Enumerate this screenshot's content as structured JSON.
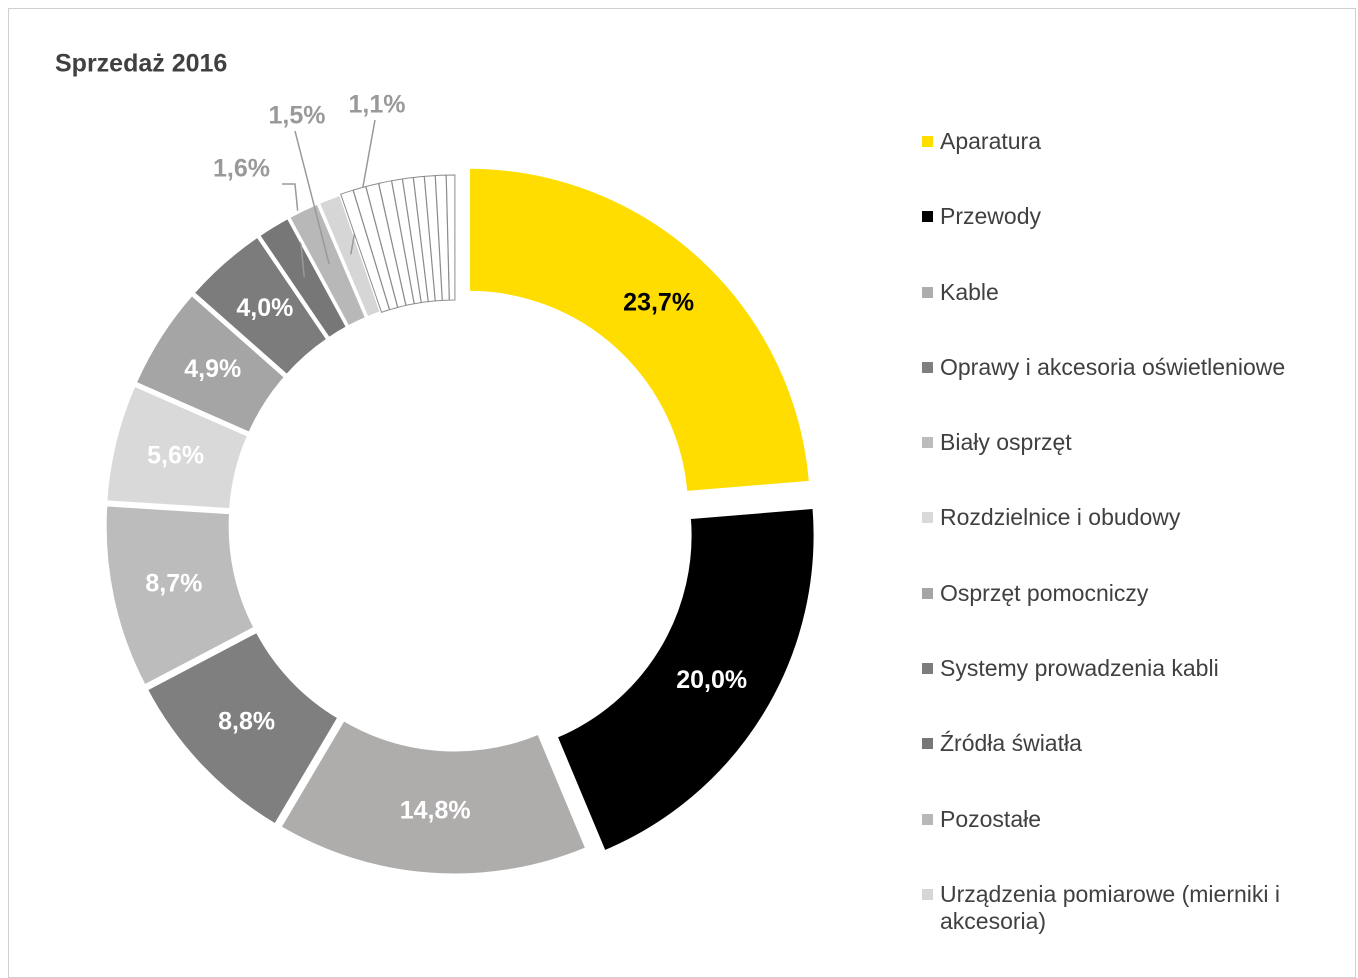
{
  "chart_data": {
    "type": "donut",
    "title": "Sprzedaż 2016",
    "categories": [
      "Aparatura",
      "Przewody",
      "Kable",
      "Oprawy i akcesoria oświetleniowe",
      "Biały osprzęt",
      "Rozdzielnice i obudowy",
      "Osprzęt pomocniczy",
      "Systemy prowadzenia kabli",
      "Źródła światła",
      "Pozostałe",
      "Urządzenia pomiarowe (mierniki i akcesoria)",
      null,
      null,
      null,
      null,
      null,
      null,
      null,
      null,
      null,
      null
    ],
    "values": [
      23.7,
      20.0,
      14.8,
      8.8,
      8.7,
      5.6,
      4.9,
      4.0,
      1.6,
      1.5,
      1.1,
      0.6,
      0.6,
      0.6,
      0.6,
      0.5,
      0.5,
      0.5,
      0.5,
      0.5,
      0.4
    ],
    "value_labels": [
      "23,7%",
      "20,0%",
      "14,8%",
      "8,8%",
      "8,7%",
      "5,6%",
      "4,9%",
      "4,0%",
      "1,6%",
      "1,5%",
      "1,1%",
      null,
      null,
      null,
      null,
      null,
      null,
      null,
      null,
      null,
      null
    ],
    "colors": [
      "#ffdd00",
      "#000000",
      "#afacac",
      "#7f7f7f",
      "#bcbcbc",
      "#d9d9d9",
      "#a5a5a5",
      "#7c7c7c",
      "#777777",
      "#b8b8b8",
      "#d6d6d6",
      "#ffffff",
      "#ffffff",
      "#ffffff",
      "#ffffff",
      "#ffffff",
      "#ffffff",
      "#ffffff",
      "#ffffff",
      "#ffffff",
      "#ffffff"
    ],
    "legend": "right"
  }
}
